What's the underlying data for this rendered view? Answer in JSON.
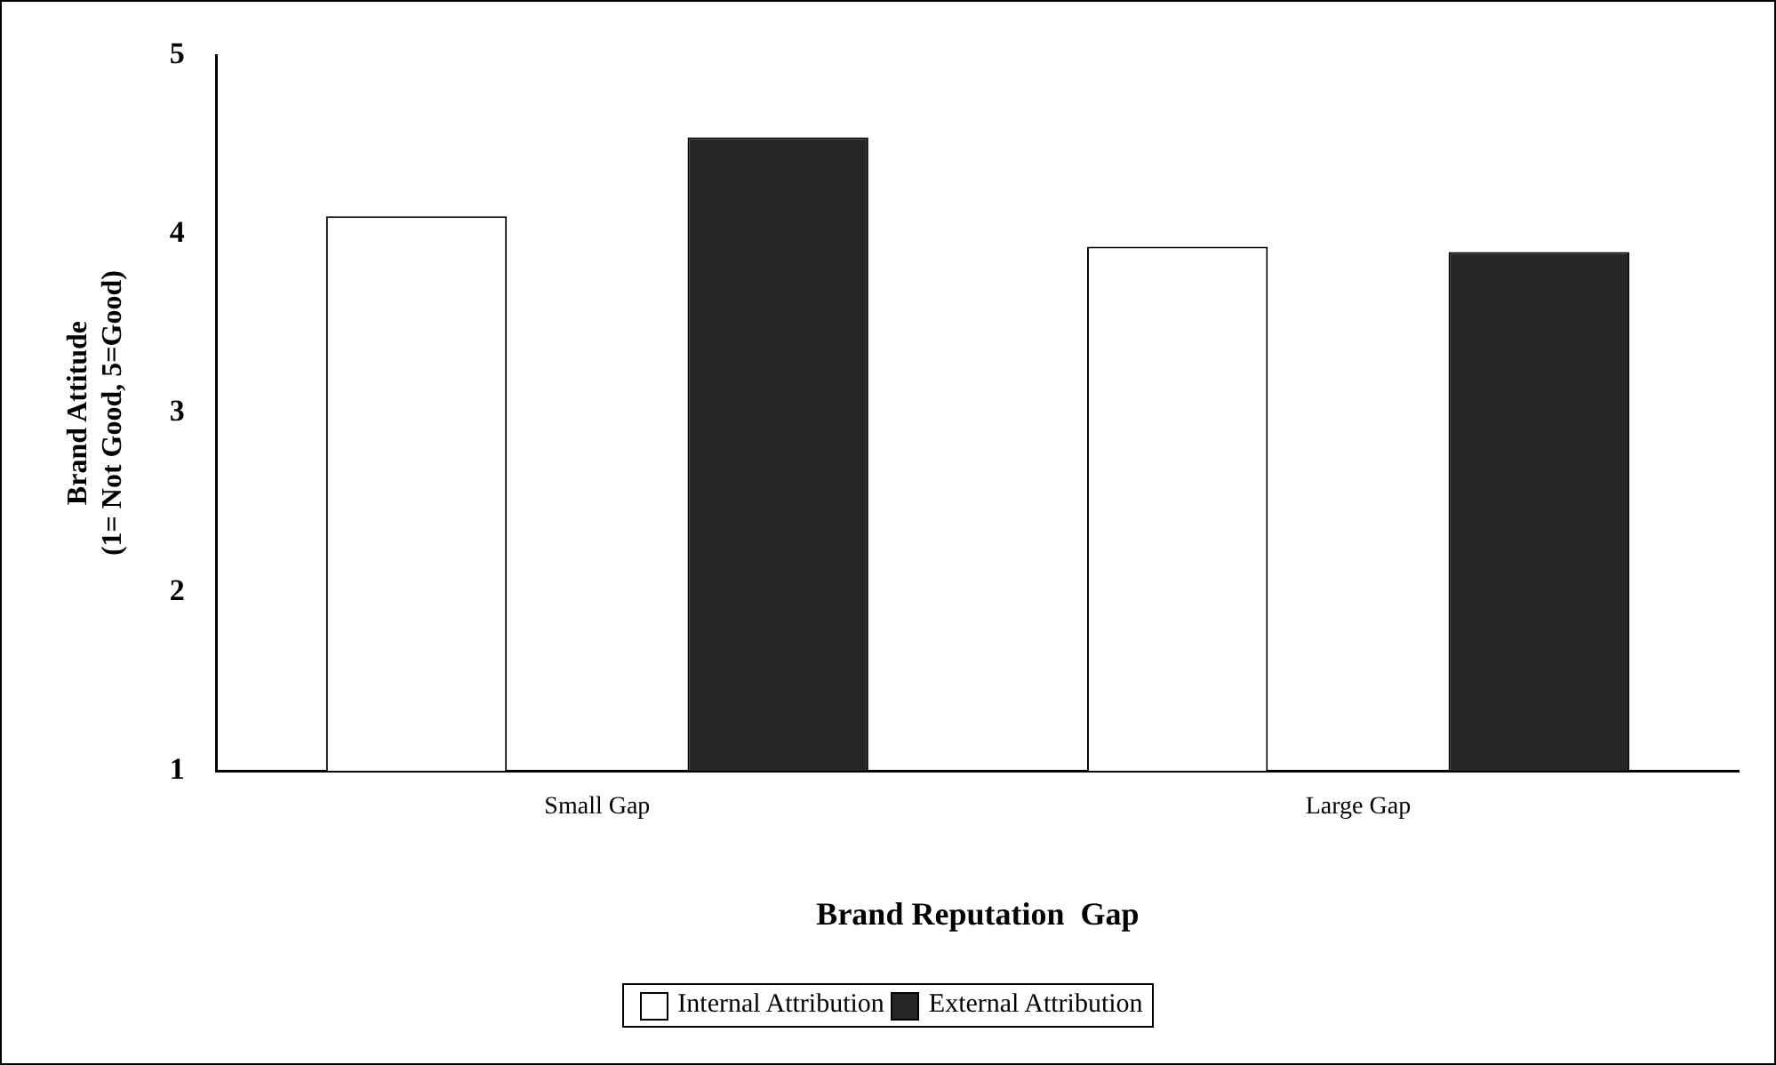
{
  "chart_data": {
    "type": "bar",
    "xlabel": "Brand Reputation  Gap",
    "ylabel": "Brand Attitude\n(1= Not Good, 5=Good)",
    "categories": [
      "Small Gap",
      "Large Gap"
    ],
    "series": [
      {
        "name": "Internal Attribution",
        "color": "#ffffff",
        "values": [
          4.1,
          3.93
        ]
      },
      {
        "name": "External Attribution",
        "color": "#262626",
        "values": [
          4.54,
          3.9
        ]
      }
    ],
    "ylim": [
      1,
      5
    ],
    "yticks": [
      1,
      2,
      3,
      4,
      5
    ],
    "grid": false,
    "legend": "bottom"
  }
}
